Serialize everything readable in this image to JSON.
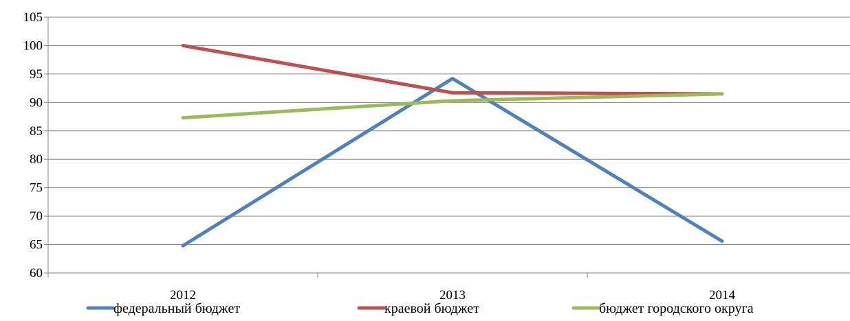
{
  "chart_data": {
    "type": "line",
    "categories": [
      "2012",
      "2013",
      "2014"
    ],
    "ylim": [
      60,
      105
    ],
    "ytick_step": 5,
    "yticks": [
      "60",
      "65",
      "70",
      "75",
      "80",
      "85",
      "90",
      "95",
      "100",
      "105"
    ],
    "grid": true,
    "legend_position": "bottom",
    "series": [
      {
        "name": "федеральный бюджет",
        "values": [
          64.8,
          94.2,
          65.6
        ],
        "color": "#4F81BD"
      },
      {
        "name": "краевой бюджет",
        "values": [
          100.0,
          91.7,
          91.5
        ],
        "color": "#C0504D"
      },
      {
        "name": "бюджет городского округа",
        "values": [
          87.3,
          90.3,
          91.5
        ],
        "color": "#9BBB59"
      }
    ]
  }
}
